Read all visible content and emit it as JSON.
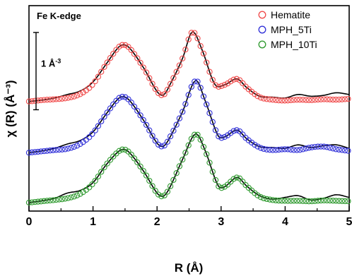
{
  "chart_data": {
    "type": "line",
    "title": "",
    "annotation": "Fe K-edge",
    "scale_bar_label": "1 Å",
    "scale_bar_exponent": "-3",
    "scale_bar_value": 1,
    "xlabel": "R (Å)",
    "ylabel": "χ (R) (Å⁻³)",
    "xlim": [
      0,
      5
    ],
    "x_ticks": [
      0,
      1,
      2,
      3,
      4,
      5
    ],
    "x_tick_labels": [
      "0",
      "1",
      "2",
      "3",
      "4",
      "5"
    ],
    "y_ticks_shown": false,
    "grid": false,
    "legend_position": "top-right",
    "fit_line_color": "#000000",
    "series": [
      {
        "name": "Hematite",
        "color": "#f04a4a",
        "offset": 2.33,
        "x": [
          0.0,
          0.2,
          0.4,
          0.6,
          0.8,
          1.0,
          1.2,
          1.4,
          1.5,
          1.6,
          1.8,
          2.0,
          2.1,
          2.2,
          2.4,
          2.55,
          2.7,
          2.9,
          3.05,
          3.25,
          3.4,
          3.6,
          3.8,
          4.0,
          4.2,
          4.4,
          4.6,
          4.8,
          5.0
        ],
        "y": [
          0.0,
          0.03,
          0.05,
          0.08,
          0.17,
          0.4,
          0.85,
          1.25,
          1.3,
          1.18,
          0.75,
          0.23,
          0.15,
          0.38,
          1.0,
          1.6,
          1.2,
          0.4,
          0.38,
          0.52,
          0.32,
          0.1,
          0.04,
          0.02,
          0.04,
          0.03,
          0.05,
          0.04,
          0.06
        ],
        "fit_y": [
          0.0,
          0.03,
          0.08,
          0.16,
          0.24,
          0.45,
          0.85,
          1.25,
          1.3,
          1.18,
          0.75,
          0.23,
          0.15,
          0.38,
          1.0,
          1.6,
          1.2,
          0.4,
          0.38,
          0.52,
          0.32,
          0.12,
          0.1,
          0.08,
          0.16,
          0.12,
          0.14,
          0.2,
          0.16
        ]
      },
      {
        "name": "MPH_5Ti",
        "color": "#3030d8",
        "offset": 1.15,
        "x": [
          0.0,
          0.2,
          0.4,
          0.6,
          0.8,
          1.0,
          1.2,
          1.4,
          1.5,
          1.6,
          1.8,
          2.0,
          2.1,
          2.2,
          2.4,
          2.6,
          2.75,
          2.95,
          3.05,
          3.25,
          3.4,
          3.6,
          3.8,
          4.0,
          4.2,
          4.4,
          4.6,
          4.8,
          5.0
        ],
        "y": [
          0.0,
          0.03,
          0.06,
          0.09,
          0.2,
          0.45,
          0.88,
          1.25,
          1.28,
          1.15,
          0.72,
          0.22,
          0.15,
          0.35,
          0.95,
          1.66,
          1.2,
          0.4,
          0.36,
          0.52,
          0.32,
          0.12,
          0.06,
          0.08,
          0.06,
          0.12,
          0.14,
          0.08,
          0.04
        ],
        "fit_y": [
          0.0,
          0.04,
          0.1,
          0.2,
          0.28,
          0.48,
          0.88,
          1.25,
          1.28,
          1.15,
          0.72,
          0.22,
          0.15,
          0.35,
          0.95,
          1.66,
          1.2,
          0.4,
          0.36,
          0.52,
          0.32,
          0.14,
          0.12,
          0.1,
          0.18,
          0.12,
          0.16,
          0.18,
          0.1
        ]
      },
      {
        "name": "MPH_10Ti",
        "color": "#2f9a2f",
        "offset": 0.0,
        "x": [
          0.0,
          0.2,
          0.4,
          0.6,
          0.8,
          1.0,
          1.2,
          1.4,
          1.5,
          1.6,
          1.8,
          2.0,
          2.1,
          2.2,
          2.4,
          2.6,
          2.75,
          2.95,
          3.05,
          3.25,
          3.4,
          3.6,
          3.8,
          4.0,
          4.2,
          4.4,
          4.6,
          4.8,
          5.0
        ],
        "y": [
          0.0,
          0.03,
          0.06,
          0.1,
          0.2,
          0.44,
          0.86,
          1.18,
          1.22,
          1.1,
          0.7,
          0.22,
          0.15,
          0.35,
          1.0,
          1.58,
          1.2,
          0.4,
          0.36,
          0.58,
          0.38,
          0.14,
          0.06,
          0.04,
          0.04,
          0.03,
          0.05,
          0.04,
          0.03
        ],
        "fit_y": [
          0.0,
          0.04,
          0.1,
          0.22,
          0.28,
          0.46,
          0.86,
          1.18,
          1.22,
          1.1,
          0.7,
          0.22,
          0.15,
          0.35,
          1.0,
          1.58,
          1.2,
          0.4,
          0.36,
          0.58,
          0.38,
          0.16,
          0.08,
          0.12,
          0.16,
          0.06,
          0.1,
          0.18,
          0.12
        ]
      }
    ]
  }
}
